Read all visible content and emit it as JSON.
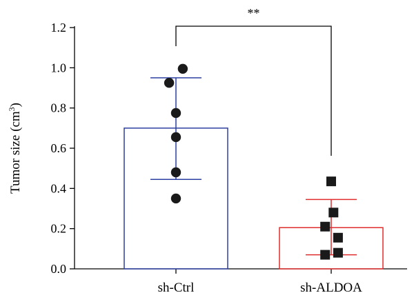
{
  "chart_data": {
    "type": "bar",
    "ylabel": "Tumor size (cm",
    "ylabel_superscript": "3",
    "ylabel_suffix": ")",
    "ylim": [
      0,
      1.2
    ],
    "yticks": [
      "0.0",
      "0.2",
      "0.4",
      "0.6",
      "0.8",
      "1.0",
      "1.2"
    ],
    "categories": [
      "sh-Ctrl",
      "sh-ALDOA"
    ],
    "values": [
      0.7,
      0.205
    ],
    "error_low": [
      0.445,
      0.07
    ],
    "error_high": [
      0.95,
      0.345
    ],
    "points": [
      [
        0.35,
        0.48,
        0.655,
        0.775,
        0.925,
        0.995
      ],
      [
        0.07,
        0.08,
        0.155,
        0.21,
        0.28,
        0.435
      ]
    ],
    "point_offsets": [
      [
        0,
        0,
        0,
        0,
        -0.45,
        0.45
      ],
      [
        -0.4,
        0.45,
        0.45,
        -0.4,
        0.15,
        0
      ]
    ],
    "markers": [
      "circle",
      "square"
    ],
    "colors": [
      "#2b3fa0",
      "#e02b2b"
    ],
    "point_color": "#1a1a1a",
    "significance": "**",
    "grid": false
  }
}
